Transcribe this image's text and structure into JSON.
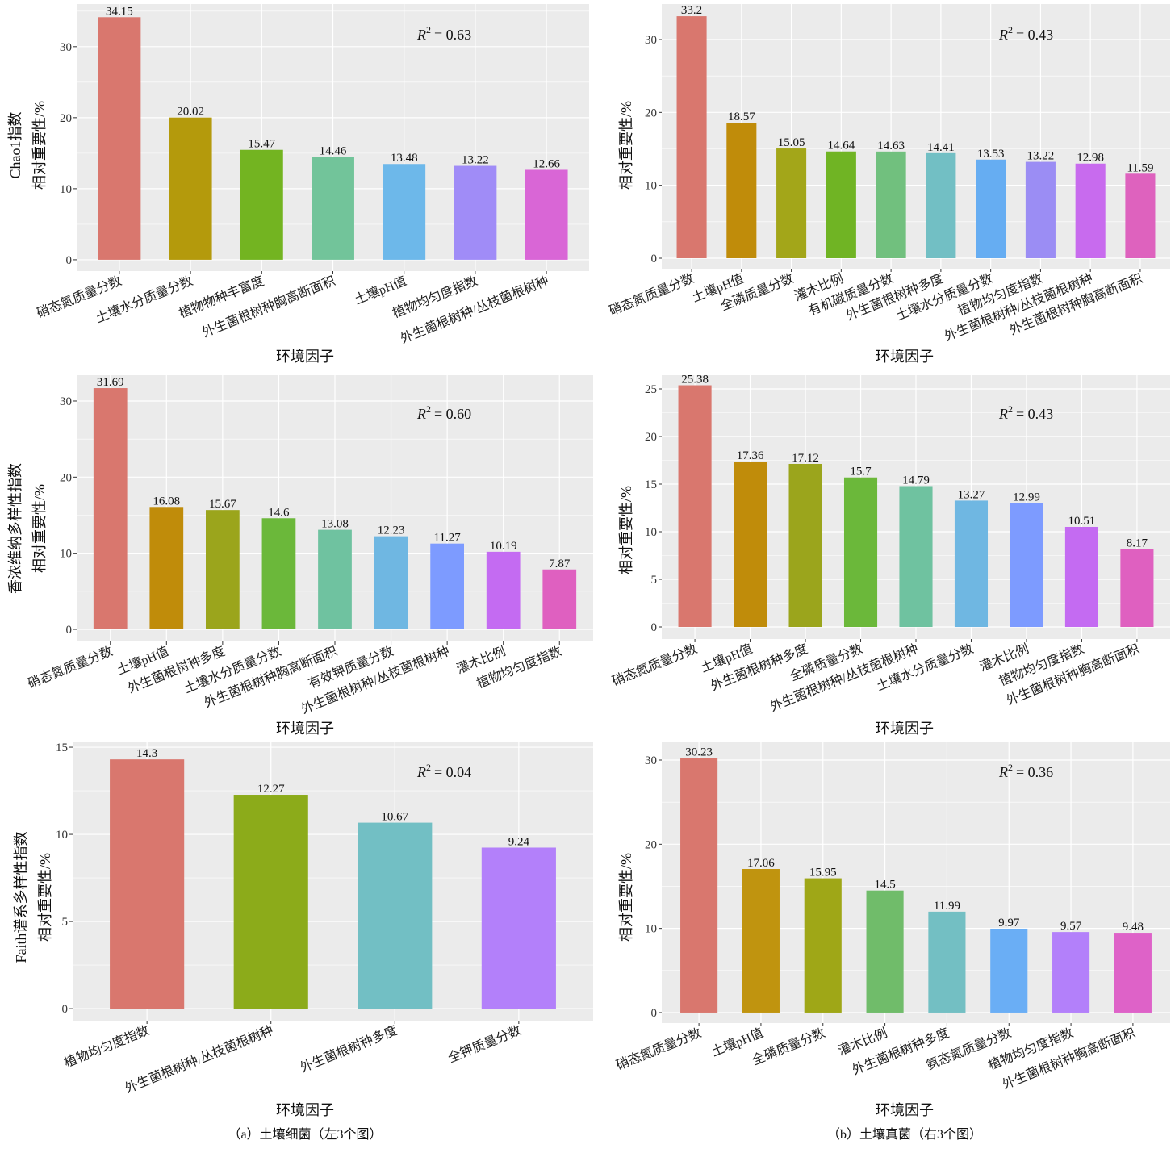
{
  "captions": {
    "bacteria": "（a）土壤细菌（左3个图）",
    "fungi": "（b）土壤真菌（右3个图）"
  },
  "chart_data": [
    {
      "type": "bar",
      "ylabel": [
        "Chao1指数",
        "相对重要性/%"
      ],
      "xlabel": "环境因子",
      "annotation": {
        "symbol": "R",
        "superscript": "2",
        "value": "= 0.63"
      },
      "categories": [
        "硝态氮质量分数",
        "土壤水分质量分数",
        "植物物种丰富度",
        "外生菌根树种胸高断面积",
        "土壤pH值",
        "植物均匀度指数",
        "外生菌根树种/丛枝菌根树种"
      ],
      "values": [
        34.15,
        20.02,
        15.47,
        14.46,
        13.48,
        13.22,
        12.66
      ],
      "colors": [
        "#D9776E",
        "#B49A0C",
        "#73B421",
        "#72C49A",
        "#6DB8EA",
        "#A08CF7",
        "#D966D6"
      ],
      "yticks": [
        0,
        10,
        20,
        30
      ],
      "ylim": [
        -1.6,
        36.0
      ],
      "grid": true
    },
    {
      "type": "bar",
      "ylabel": [
        "相对重要性/%"
      ],
      "xlabel": "环境因子",
      "annotation": {
        "symbol": "R",
        "superscript": "2",
        "value": "= 0.43"
      },
      "categories": [
        "硝态氮质量分数",
        "土壤pH值",
        "全磷质量分数",
        "灌木比例",
        "有机碳质量分数",
        "外生菌根树种多度",
        "土壤水分质量分数",
        "植物均匀度指数",
        "外生菌根树种/丛枝菌根树种",
        "外生菌根树种胸高断面积"
      ],
      "values": [
        33.2,
        18.57,
        15.05,
        14.64,
        14.63,
        14.41,
        13.53,
        13.22,
        12.98,
        11.59
      ],
      "colors": [
        "#D9776E",
        "#C08C0A",
        "#A3A619",
        "#70B424",
        "#71C07E",
        "#72BFC4",
        "#66ADF2",
        "#9B8DF4",
        "#C86BEE",
        "#DE62BE"
      ],
      "yticks": [
        0,
        10,
        20,
        30
      ],
      "ylim": [
        -1.44,
        34.87
      ],
      "grid": true
    },
    {
      "type": "bar",
      "ylabel": [
        "香浓维纳多样性指数",
        "相对重要性/%"
      ],
      "xlabel": "环境因子",
      "annotation": {
        "symbol": "R",
        "superscript": "2",
        "value": "= 0.60"
      },
      "categories": [
        "硝态氮质量分数",
        "土壤pH值",
        "外生菌根树种多度",
        "土壤水分质量分数",
        "外生菌根树种胸高断面积",
        "有效钾质量分数",
        "外生菌根树种/丛枝菌根树种",
        "灌木比例",
        "植物均匀度指数"
      ],
      "values": [
        31.69,
        16.08,
        15.67,
        14.6,
        13.08,
        12.23,
        11.27,
        10.19,
        7.87
      ],
      "colors": [
        "#D9776E",
        "#C08C0A",
        "#9BA51C",
        "#6BB83A",
        "#6FC2A0",
        "#6FB7E2",
        "#7D9BFF",
        "#C46BF2",
        "#DF60C0"
      ],
      "yticks": [
        0,
        10,
        20,
        30
      ],
      "ylim": [
        -1.59,
        33.39
      ],
      "grid": true
    },
    {
      "type": "bar",
      "ylabel": [
        "相对重要性/%"
      ],
      "xlabel": "环境因子",
      "annotation": {
        "symbol": "R",
        "superscript": "2",
        "value": "= 0.43"
      },
      "categories": [
        "硝态氮质量分数",
        "土壤pH值",
        "外生菌根树种多度",
        "全磷质量分数",
        "外生菌根树种/丛枝菌根树种",
        "土壤水分质量分数",
        "灌木比例",
        "植物均匀度指数",
        "外生菌根树种胸高断面积"
      ],
      "values": [
        25.38,
        17.36,
        17.12,
        15.7,
        14.79,
        13.27,
        12.99,
        10.51,
        8.17
      ],
      "colors": [
        "#D9776E",
        "#C08C0A",
        "#9BA51C",
        "#6BB83A",
        "#6FC2A0",
        "#6FB7E2",
        "#7D9BFF",
        "#C46BF2",
        "#DF60C0"
      ],
      "yticks": [
        0,
        5,
        10,
        15,
        20,
        25
      ],
      "ylim": [
        -1.27,
        26.44
      ],
      "grid": true
    },
    {
      "type": "bar",
      "ylabel": [
        "Faith谱系多样性指数",
        "相对重要性/%"
      ],
      "xlabel": "环境因子",
      "annotation": {
        "symbol": "R",
        "superscript": "2",
        "value": "= 0.04"
      },
      "categories": [
        "植物均匀度指数",
        "外生菌根树种/丛枝菌根树种",
        "外生菌根树种多度",
        "全钾质量分数"
      ],
      "values": [
        14.3,
        12.27,
        10.67,
        9.24
      ],
      "colors": [
        "#D9776E",
        "#8CAB1A",
        "#72BFC4",
        "#B380FA"
      ],
      "yticks": [
        0,
        5,
        10,
        15
      ],
      "ylim": [
        -0.69,
        15.28
      ],
      "grid": true
    },
    {
      "type": "bar",
      "ylabel": [
        "相对重要性/%"
      ],
      "xlabel": "环境因子",
      "annotation": {
        "symbol": "R",
        "superscript": "2",
        "value": "= 0.36"
      },
      "categories": [
        "硝态氮质量分数",
        "土壤pH值",
        "全磷质量分数",
        "灌木比例",
        "外生菌根树种多度",
        "氨态氮质量分数",
        "植物均匀度指数",
        "外生菌根树种胸高断面积"
      ],
      "values": [
        30.23,
        17.06,
        15.95,
        14.5,
        11.99,
        9.97,
        9.57,
        9.48
      ],
      "colors": [
        "#D9776E",
        "#C0940F",
        "#9FA717",
        "#70BC6A",
        "#73BFC3",
        "#6AAEF5",
        "#B380FA",
        "#DE62C8"
      ],
      "yticks": [
        0,
        10,
        20,
        30
      ],
      "ylim": [
        -1.25,
        32.11
      ],
      "grid": true
    }
  ]
}
